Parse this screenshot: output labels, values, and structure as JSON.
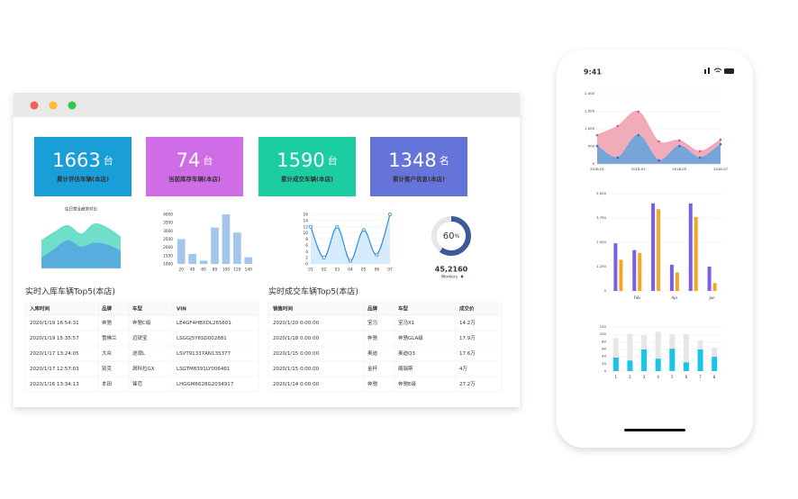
{
  "window": {
    "cards": [
      {
        "value": 1663,
        "unit": "台",
        "label": "累计评估车辆(本店)",
        "color": "#199ed8"
      },
      {
        "value": 74,
        "unit": "台",
        "label": "当前库存车辆(本店)",
        "color": "#cf6de6"
      },
      {
        "value": 1590,
        "unit": "台",
        "label": "累计成交车辆(本店)",
        "color": "#1ccda1"
      },
      {
        "value": 1348,
        "unit": "名",
        "label": "累计客户信息(本店)",
        "color": "#6574d8"
      }
    ],
    "area_chart": {
      "type": "area",
      "title": "往日营业趋势对比",
      "ylim": [
        0,
        100
      ],
      "series": [
        {
          "color": "#5fdcc4",
          "values": [
            55,
            72,
            85,
            68,
            88,
            80,
            62
          ]
        },
        {
          "color": "#56a9e2",
          "values": [
            20,
            38,
            55,
            42,
            50,
            46,
            34
          ]
        }
      ]
    },
    "bar_chart": {
      "type": "bar",
      "color": "#a3c6ea",
      "categories": [
        "20",
        "40",
        "60",
        "80",
        "100",
        "120",
        "140"
      ],
      "values": [
        2500,
        1600,
        1200,
        3200,
        4000,
        2900,
        1400
      ],
      "ylim": [
        1000,
        4000
      ],
      "yticks": [
        1000,
        1500,
        2000,
        2500,
        3000,
        3500,
        4000
      ]
    },
    "line_chart": {
      "type": "line",
      "color": "#2f8fe0",
      "categories": [
        "01",
        "02",
        "03",
        "04",
        "05",
        "06",
        "07"
      ],
      "values": [
        12,
        2,
        12,
        1,
        11,
        3,
        16
      ],
      "ylim": [
        0,
        16
      ],
      "yticks": [
        0,
        2,
        4,
        6,
        8,
        10,
        12,
        14,
        16
      ]
    },
    "gauge": {
      "value": 60,
      "unit": "%",
      "count": "45,2160",
      "count_label": "Workers",
      "color": "#3a5a9b"
    },
    "tables": [
      {
        "title": "实时入库车辆Top5(本店)",
        "columns": [
          "入库时间",
          "品牌",
          "车型",
          "VIN"
        ],
        "rows": [
          [
            "2020/1/19 16:54:31",
            "奔驰",
            "奔驰C级",
            "LE4GF4HBXDL265601"
          ],
          [
            "2020/1/19 15:35:57",
            "雪佛兰",
            "迈锐宝",
            "LSGGJ5Y6SD002881"
          ],
          [
            "2020/1/17 13:24:05",
            "大众",
            "途观L",
            "LSVT91337AN135377"
          ],
          [
            "2020/1/17 12:57:03",
            "别克",
            "昂科拉GX",
            "LSGTM8391LY006461"
          ],
          [
            "2020/1/16 13:34:13",
            "本田",
            "锋范",
            "LHGGM6628G2034917"
          ]
        ]
      },
      {
        "title": "实时成交车辆Top5(本店)",
        "columns": [
          "销售时间",
          "品牌",
          "车型",
          "成交价"
        ],
        "rows": [
          [
            "2020/1/20 0:00:00",
            "宝马",
            "宝马X1",
            "14.2万"
          ],
          [
            "2020/1/18 0:00:00",
            "奔驰",
            "奔驰GLA级",
            "17.9万"
          ],
          [
            "2020/1/15 0:00:00",
            "奥迪",
            "奥迪Q3",
            "17.6万"
          ],
          [
            "2020/1/15 0:00:00",
            "金杯",
            "阁瑞斯",
            "4万"
          ],
          [
            "2020/1/14 0:00:00",
            "奔驰",
            "奔驰E级",
            "27.2万"
          ]
        ]
      }
    ]
  },
  "phone": {
    "time": "9:41",
    "area_chart": {
      "type": "area",
      "categories": [
        "2018-01",
        null,
        "2018-03",
        null,
        "2018-05",
        null,
        "2018-07"
      ],
      "ylim": [
        0,
        2000
      ],
      "yticks": [
        0,
        {
          "value": 500,
          "label": "500"
        },
        {
          "value": 1000,
          "label": "1,000"
        },
        {
          "value": 1500,
          "label": "1,500"
        },
        {
          "value": 2000,
          "label": "2,000"
        }
      ],
      "series": [
        {
          "color": "#f0a3b2",
          "values": [
            820,
            1080,
            1490,
            640,
            670,
            360,
            690
          ]
        },
        {
          "color": "#6aa4dc",
          "values": [
            510,
            180,
            820,
            100,
            510,
            180,
            560
          ]
        }
      ]
    },
    "bar_chart": {
      "type": "bar",
      "categories": [
        null,
        "Feb",
        null,
        "Apr",
        null,
        "Jun"
      ],
      "ylim": [
        0,
        5000
      ],
      "yticks": [
        0,
        {
          "value": 1250,
          "label": "1,250"
        },
        {
          "value": 2500,
          "label": "2,500"
        },
        {
          "value": 3750,
          "label": "3,750"
        },
        {
          "value": 5000,
          "label": "5,000"
        }
      ],
      "series": [
        {
          "color": "#7a5fe6",
          "values": [
            2450,
            2100,
            4500,
            1350,
            4500,
            1250
          ]
        },
        {
          "color": "#f6a623",
          "values": [
            1600,
            1950,
            4200,
            950,
            3800,
            400
          ]
        }
      ]
    },
    "stacked_chart": {
      "type": "stacked_bar",
      "categories": [
        "1",
        "2",
        "3",
        "4",
        "5",
        "6",
        "7",
        "8"
      ],
      "ylim": [
        0,
        120
      ],
      "yticks": [
        0,
        20,
        40,
        60,
        80,
        100,
        120
      ],
      "series": [
        {
          "color": "#1cc2ea",
          "values": [
            37,
            29,
            59,
            34,
            61,
            24,
            59,
            39
          ]
        },
        {
          "color": "#e6e6e6",
          "values": [
            53,
            71,
            39,
            73,
            39,
            76,
            24,
            24
          ]
        }
      ]
    }
  }
}
